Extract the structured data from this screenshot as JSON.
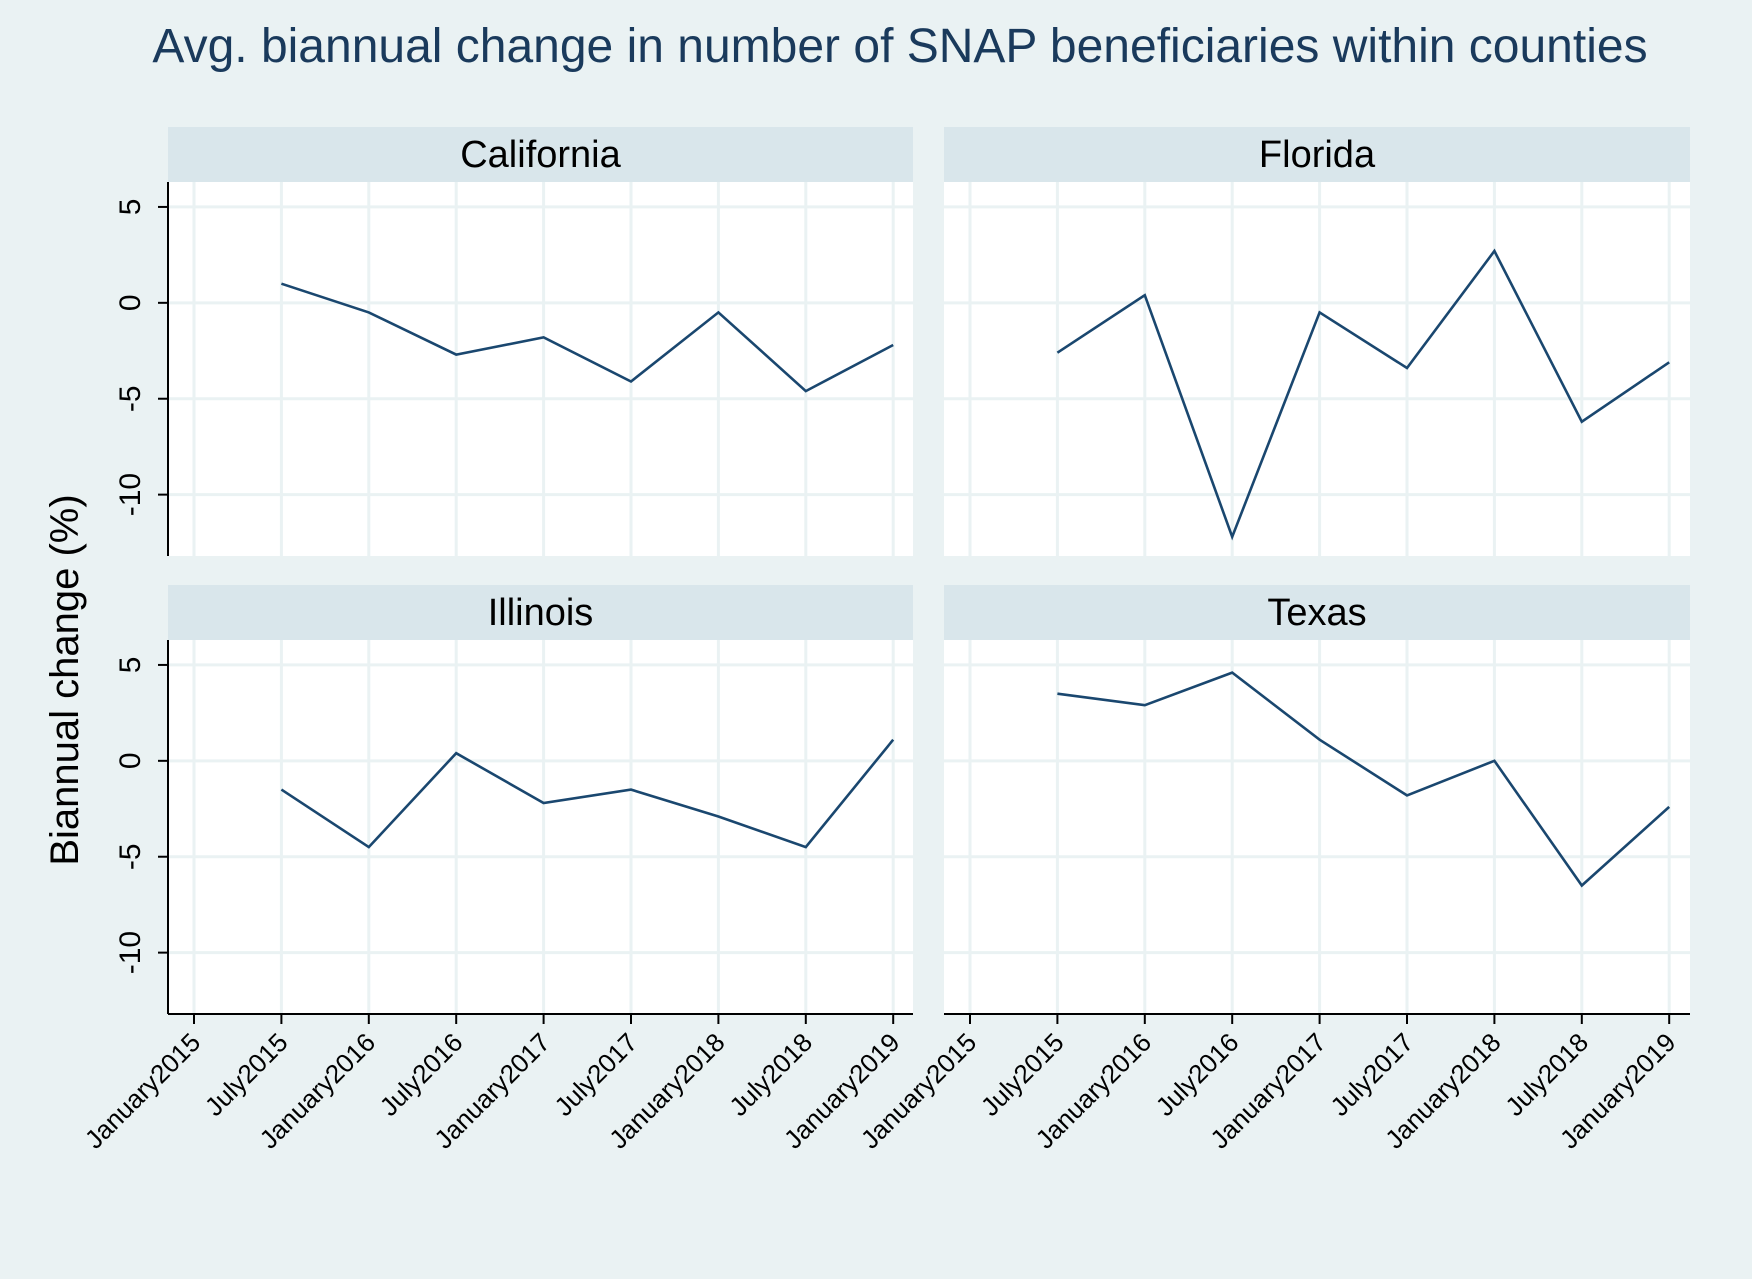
{
  "chart_data": {
    "type": "line",
    "title": "Avg. biannual change in number of SNAP beneficiaries within counties",
    "ylabel": "Biannual change (%)",
    "xlabel": "",
    "x_ticks": [
      "January2015",
      "July2015",
      "January2016",
      "July2016",
      "January2017",
      "July2017",
      "January2018",
      "July2018",
      "January2019"
    ],
    "y_ticks": [
      5,
      0,
      -5,
      -10
    ],
    "ylim": [
      -13.2,
      6.3
    ],
    "grid": true,
    "colors": {
      "background": "#eaf2f3",
      "panel": "#ffffff",
      "strip": "#d9e6eb",
      "line": "#1a476f",
      "grid": "#eaf2f3",
      "title": "#1a3a5c",
      "axis": "#000000"
    },
    "panels": [
      {
        "name": "California",
        "x": [
          "July2015",
          "January2016",
          "July2016",
          "January2017",
          "July2017",
          "January2018",
          "July2018",
          "January2019"
        ],
        "values": [
          1.0,
          -0.5,
          -2.7,
          -1.8,
          -4.1,
          -0.5,
          -4.6,
          -2.2
        ]
      },
      {
        "name": "Florida",
        "x": [
          "July2015",
          "January2016",
          "July2016",
          "January2017",
          "July2017",
          "January2018",
          "July2018",
          "January2019"
        ],
        "values": [
          -2.6,
          0.4,
          -12.2,
          -0.5,
          -3.4,
          2.7,
          -6.2,
          -3.1
        ]
      },
      {
        "name": "Illinois",
        "x": [
          "July2015",
          "January2016",
          "July2016",
          "January2017",
          "July2017",
          "January2018",
          "July2018",
          "January2019"
        ],
        "values": [
          -1.5,
          -4.5,
          0.4,
          -2.2,
          -1.5,
          -2.9,
          -4.5,
          1.1
        ]
      },
      {
        "name": "Texas",
        "x": [
          "July2015",
          "January2016",
          "July2016",
          "January2017",
          "July2017",
          "January2018",
          "July2018",
          "January2019"
        ],
        "values": [
          3.5,
          2.9,
          4.6,
          1.1,
          -1.8,
          0.0,
          -6.5,
          -2.4
        ]
      }
    ]
  }
}
